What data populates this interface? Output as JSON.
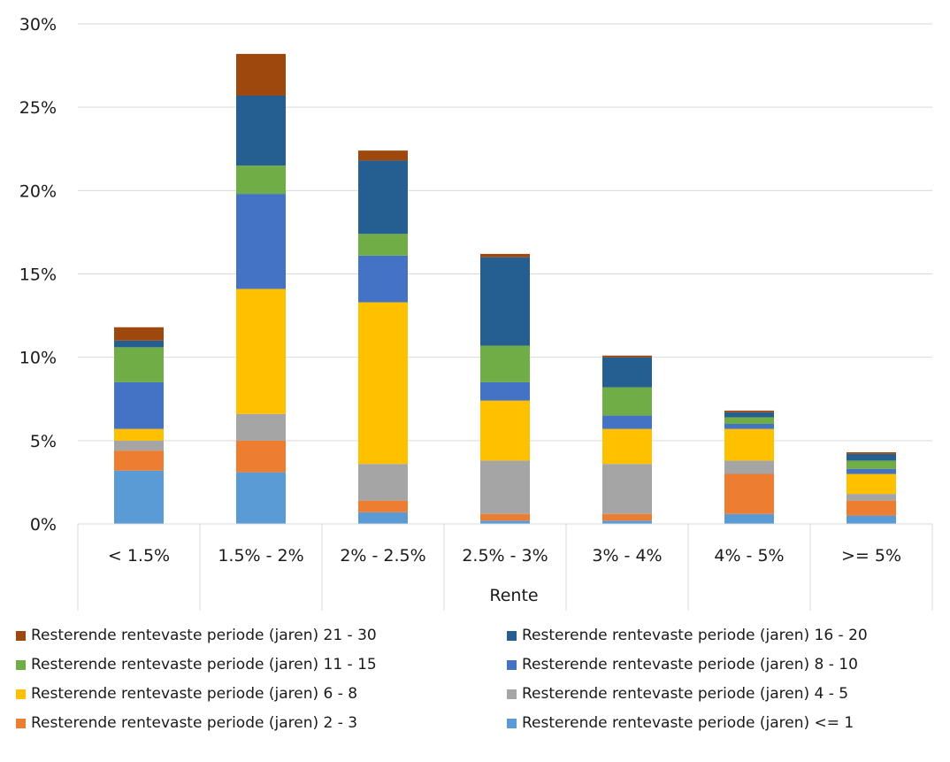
{
  "chart_data": {
    "type": "bar",
    "stacked": true,
    "xlabel": "Rente",
    "ylabel": "",
    "ylim": [
      0,
      30
    ],
    "y_ticks": [
      "0%",
      "5%",
      "10%",
      "15%",
      "20%",
      "25%",
      "30%"
    ],
    "y_tick_values": [
      0,
      5,
      10,
      15,
      20,
      25,
      30
    ],
    "grid": "horizontal",
    "legend_position": "bottom",
    "categories": [
      "< 1.5%",
      "1.5% - 2%",
      "2% - 2.5%",
      "2.5% - 3%",
      "3% - 4%",
      "4% - 5%",
      ">= 5%"
    ],
    "series": [
      {
        "name": "Resterende rentevaste periode (jaren) <= 1",
        "color": "#5B9BD5",
        "values": [
          3.2,
          3.1,
          0.7,
          0.2,
          0.2,
          0.6,
          0.5
        ]
      },
      {
        "name": "Resterende rentevaste periode (jaren) 2 - 3",
        "color": "#ED7D31",
        "values": [
          1.2,
          1.9,
          0.7,
          0.4,
          0.4,
          2.4,
          0.9
        ]
      },
      {
        "name": "Resterende rentevaste periode (jaren) 4 - 5",
        "color": "#A5A5A5",
        "values": [
          0.6,
          1.6,
          2.2,
          3.2,
          3.0,
          0.8,
          0.4
        ]
      },
      {
        "name": "Resterende rentevaste periode (jaren) 6 - 8",
        "color": "#FFC000",
        "values": [
          0.7,
          7.5,
          9.7,
          3.6,
          2.1,
          1.9,
          1.2
        ]
      },
      {
        "name": "Resterende rentevaste periode (jaren) 8 - 10",
        "color": "#4472C4",
        "values": [
          2.8,
          5.7,
          2.8,
          1.1,
          0.8,
          0.3,
          0.3
        ]
      },
      {
        "name": "Resterende rentevaste periode (jaren) 11 - 15",
        "color": "#70AD47",
        "values": [
          2.1,
          1.7,
          1.3,
          2.2,
          1.7,
          0.4,
          0.5
        ]
      },
      {
        "name": "Resterende rentevaste periode (jaren) 16 - 20",
        "color": "#255E91",
        "values": [
          0.4,
          4.2,
          4.4,
          5.3,
          1.8,
          0.3,
          0.4
        ]
      },
      {
        "name": "Resterende rentevaste periode (jaren) 21 - 30",
        "color": "#9E480E",
        "values": [
          0.8,
          2.5,
          0.6,
          0.2,
          0.1,
          0.1,
          0.1
        ]
      }
    ]
  },
  "legend": {
    "order": [
      "Resterende rentevaste periode (jaren) 21 - 30",
      "Resterende rentevaste periode (jaren) 16 - 20",
      "Resterende rentevaste periode (jaren) 11 - 15",
      "Resterende rentevaste periode (jaren) 8 - 10",
      "Resterende rentevaste periode (jaren) 6 - 8",
      "Resterende rentevaste periode (jaren) 4 - 5",
      "Resterende rentevaste periode (jaren) 2 - 3",
      "Resterende rentevaste periode (jaren) <= 1"
    ]
  }
}
